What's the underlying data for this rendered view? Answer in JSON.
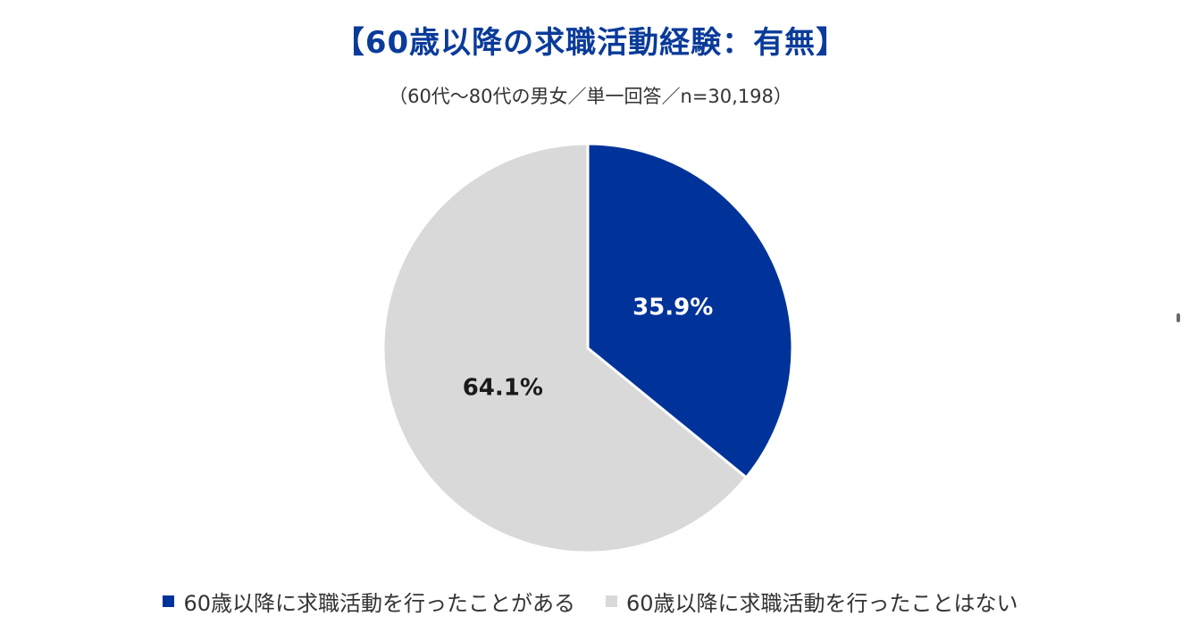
{
  "chart_data": {
    "type": "pie",
    "title": "【60歳以降の求職活動経験：有無】",
    "subtitle": "（60代～80代の男女／単一回答／n=30,198）",
    "slices": [
      {
        "label": "60歳以降に求職活動を行ったことがある",
        "value": 35.9,
        "display": "35.9%",
        "color": "#003399",
        "label_color": "#ffffff"
      },
      {
        "label": "60歳以降に求職活動を行ったことはない",
        "value": 64.1,
        "display": "64.1%",
        "color": "#d9d9d9",
        "label_color": "#1a1a1a"
      }
    ],
    "start_angle": "12 o'clock",
    "direction": "clockwise",
    "legend_position": "bottom"
  }
}
